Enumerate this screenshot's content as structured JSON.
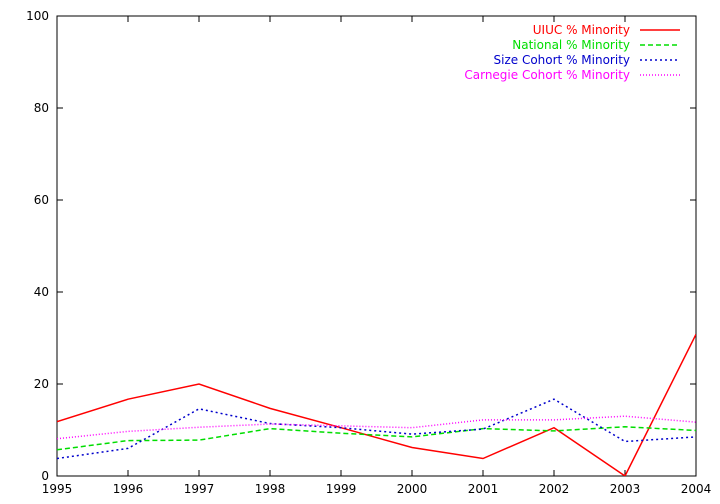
{
  "chart_data": {
    "type": "line",
    "title": "",
    "xlabel": "",
    "ylabel": "",
    "x": [
      1995,
      1996,
      1997,
      1998,
      1999,
      2000,
      2001,
      2002,
      2003,
      2004
    ],
    "x_ticks": [
      "1995",
      "1996",
      "1997",
      "1998",
      "1999",
      "2000",
      "2001",
      "2002",
      "2003",
      "2004"
    ],
    "y_ticks": [
      "0",
      "20",
      "40",
      "60",
      "80",
      "100"
    ],
    "xlim": [
      1995,
      2004
    ],
    "ylim": [
      0,
      100
    ],
    "grid": false,
    "legend_position": "top-right",
    "series": [
      {
        "name": "UIUC % Minority",
        "color": "#ff0000",
        "dash": "solid",
        "values": [
          11.8,
          16.7,
          20.0,
          14.7,
          10.5,
          6.2,
          3.8,
          10.5,
          0.0,
          30.8
        ]
      },
      {
        "name": "National % Minority",
        "color": "#00dd00",
        "dash": "dashed",
        "values": [
          5.7,
          7.7,
          7.8,
          10.3,
          9.3,
          8.5,
          10.3,
          9.8,
          10.7,
          9.9
        ]
      },
      {
        "name": "Size Cohort % Minority",
        "color": "#0000cc",
        "dash": "dotted",
        "values": [
          3.8,
          6.0,
          14.6,
          11.4,
          10.5,
          9.1,
          10.2,
          16.7,
          7.5,
          8.5
        ]
      },
      {
        "name": "Carnegie Cohort % Minority",
        "color": "#ff00ff",
        "dash": "fine-dotted",
        "values": [
          8.1,
          9.7,
          10.6,
          11.3,
          10.9,
          10.5,
          12.2,
          12.2,
          13.0,
          11.7
        ]
      }
    ]
  }
}
